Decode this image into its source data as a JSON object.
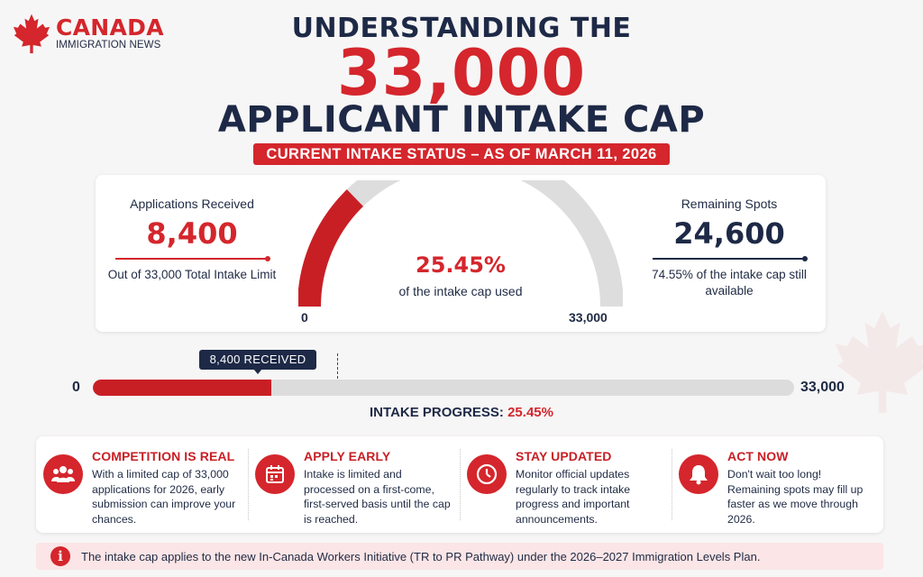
{
  "brand": {
    "name": "CANADA",
    "tagline": "IMMIGRATION NEWS",
    "logo_icon": "maple-leaf-icon",
    "accent": "#d4262c",
    "navy": "#1d2946"
  },
  "headline": {
    "line1": "UNDERSTANDING THE",
    "number": "33,000",
    "line3": "APPLICANT INTAKE CAP"
  },
  "status_banner": "CURRENT INTAKE STATUS – AS OF MARCH 11, 2026",
  "received": {
    "label": "Applications Received",
    "value": "8,400",
    "sub": "Out of 33,000 Total Intake Limit"
  },
  "remaining": {
    "label": "Remaining Spots",
    "value": "24,600",
    "sub": "74.55% of the intake cap still available"
  },
  "gauge": {
    "percent_text": "25.45%",
    "caption": "of the intake cap used",
    "min_label": "0",
    "max_label": "33,000",
    "used_fraction": 0.2545
  },
  "progress": {
    "tag": "8,400 RECEIVED",
    "min_label": "0",
    "max_label": "33,000",
    "label_prefix": "INTAKE PROGRESS:",
    "label_value": "25.45%",
    "fill_fraction": 0.2545
  },
  "tips": [
    {
      "icon": "people-icon",
      "title": "COMPETITION IS REAL",
      "text": "With a limited cap of 33,000 applications for 2026, early submission can improve your chances."
    },
    {
      "icon": "calendar-icon",
      "title": "APPLY EARLY",
      "text": "Intake is limited and processed on a first-come, first-served basis until the cap is reached."
    },
    {
      "icon": "clock-icon",
      "title": "STAY UPDATED",
      "text": "Monitor official updates regularly to track intake progress and important announcements."
    },
    {
      "icon": "bell-icon",
      "title": "ACT NOW",
      "text": "Don't wait too long! Remaining spots may fill up faster as we move through 2026."
    }
  ],
  "note": {
    "icon": "info-icon",
    "icon_glyph": "i",
    "text": "The intake cap applies to the new In-Canada Workers Initiative (TR to PR Pathway) under the 2026–2027 Immigration Levels Plan."
  }
}
